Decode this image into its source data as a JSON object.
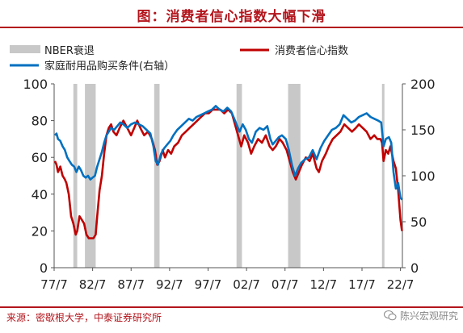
{
  "header": {
    "title": "图：消费者信心指数大幅下滑"
  },
  "footer": {
    "source": "来源：密歇根大学，中泰证券研究所",
    "watermark": "陈兴宏观研究"
  },
  "colors": {
    "accent": "#b3151c",
    "consumer": "#c00000",
    "durable": "#0070c0",
    "nber": "#c8c8c8"
  },
  "chart_data": {
    "type": "line",
    "xlim": [
      1977.5,
      2022.75
    ],
    "ylim": [
      0,
      100
    ],
    "y2lim": [
      0,
      200
    ],
    "x_tick_labels": [
      "77/7",
      "82/7",
      "87/7",
      "92/7",
      "97/7",
      "02/7",
      "07/7",
      "12/7",
      "17/7",
      "22/7"
    ],
    "x_tick_values": [
      1977.5,
      1982.5,
      1987.5,
      1992.5,
      1997.5,
      2002.5,
      2007.5,
      2012.5,
      2017.5,
      2022.5
    ],
    "y_ticks": [
      0,
      20,
      40,
      60,
      80,
      100
    ],
    "y2_ticks": [
      0,
      50,
      100,
      150,
      200
    ],
    "legend": [
      {
        "label": "NBER衰退",
        "kind": "band"
      },
      {
        "label": "消费者信心指数",
        "kind": "line-red"
      },
      {
        "label": "家庭耐用品购买条件(右轴）",
        "kind": "line-blue"
      }
    ],
    "recessions": [
      [
        1980.0,
        1980.5
      ],
      [
        1981.5,
        1982.9
      ],
      [
        1990.5,
        1991.2
      ],
      [
        2001.2,
        2001.9
      ],
      [
        2007.9,
        2009.5
      ],
      [
        2020.1,
        2020.4
      ]
    ],
    "series": [
      {
        "name": "消费者信心指数",
        "axis": "left",
        "points": [
          [
            1977.6,
            58
          ],
          [
            1977.8,
            56
          ],
          [
            1978.0,
            52
          ],
          [
            1978.3,
            55
          ],
          [
            1978.6,
            50
          ],
          [
            1978.9,
            48
          ],
          [
            1979.1,
            46
          ],
          [
            1979.4,
            40
          ],
          [
            1979.7,
            28
          ],
          [
            1980.0,
            24
          ],
          [
            1980.3,
            18
          ],
          [
            1980.5,
            20
          ],
          [
            1980.8,
            28
          ],
          [
            1981.1,
            26
          ],
          [
            1981.4,
            24
          ],
          [
            1981.7,
            18
          ],
          [
            1982.0,
            16
          ],
          [
            1982.3,
            16
          ],
          [
            1982.6,
            16
          ],
          [
            1982.9,
            18
          ],
          [
            1983.1,
            28
          ],
          [
            1983.4,
            42
          ],
          [
            1983.7,
            50
          ],
          [
            1984.0,
            62
          ],
          [
            1984.3,
            72
          ],
          [
            1984.6,
            76
          ],
          [
            1984.9,
            78
          ],
          [
            1985.2,
            74
          ],
          [
            1985.6,
            72
          ],
          [
            1986.0,
            76
          ],
          [
            1986.5,
            80
          ],
          [
            1987.0,
            76
          ],
          [
            1987.5,
            72
          ],
          [
            1987.9,
            76
          ],
          [
            1988.3,
            80
          ],
          [
            1988.7,
            76
          ],
          [
            1989.2,
            72
          ],
          [
            1989.7,
            74
          ],
          [
            1990.2,
            70
          ],
          [
            1990.6,
            64
          ],
          [
            1990.9,
            56
          ],
          [
            1991.2,
            58
          ],
          [
            1991.6,
            64
          ],
          [
            1991.9,
            60
          ],
          [
            1992.3,
            64
          ],
          [
            1992.7,
            62
          ],
          [
            1993.1,
            66
          ],
          [
            1993.6,
            68
          ],
          [
            1994.1,
            72
          ],
          [
            1994.6,
            74
          ],
          [
            1995.1,
            76
          ],
          [
            1995.6,
            78
          ],
          [
            1996.1,
            80
          ],
          [
            1996.6,
            82
          ],
          [
            1997.1,
            84
          ],
          [
            1997.6,
            84
          ],
          [
            1998.1,
            86
          ],
          [
            1998.6,
            86
          ],
          [
            1999.1,
            86
          ],
          [
            1999.6,
            84
          ],
          [
            2000.1,
            86
          ],
          [
            2000.6,
            84
          ],
          [
            2001.0,
            78
          ],
          [
            2001.4,
            72
          ],
          [
            2001.8,
            66
          ],
          [
            2002.2,
            72
          ],
          [
            2002.7,
            68
          ],
          [
            2003.1,
            62
          ],
          [
            2003.5,
            66
          ],
          [
            2004.0,
            70
          ],
          [
            2004.5,
            68
          ],
          [
            2005.0,
            72
          ],
          [
            2005.5,
            66
          ],
          [
            2005.9,
            64
          ],
          [
            2006.3,
            66
          ],
          [
            2006.8,
            70
          ],
          [
            2007.2,
            68
          ],
          [
            2007.7,
            64
          ],
          [
            2008.1,
            58
          ],
          [
            2008.5,
            52
          ],
          [
            2008.9,
            48
          ],
          [
            2009.3,
            52
          ],
          [
            2009.7,
            56
          ],
          [
            2010.2,
            60
          ],
          [
            2010.7,
            58
          ],
          [
            2011.1,
            62
          ],
          [
            2011.6,
            54
          ],
          [
            2011.9,
            52
          ],
          [
            2012.3,
            58
          ],
          [
            2012.8,
            62
          ],
          [
            2013.2,
            66
          ],
          [
            2013.7,
            70
          ],
          [
            2014.2,
            72
          ],
          [
            2014.7,
            74
          ],
          [
            2015.2,
            78
          ],
          [
            2015.7,
            76
          ],
          [
            2016.2,
            74
          ],
          [
            2016.7,
            76
          ],
          [
            2017.1,
            78
          ],
          [
            2017.6,
            76
          ],
          [
            2018.1,
            74
          ],
          [
            2018.6,
            70
          ],
          [
            2019.1,
            72
          ],
          [
            2019.5,
            70
          ],
          [
            2019.9,
            70
          ],
          [
            2020.1,
            68
          ],
          [
            2020.3,
            58
          ],
          [
            2020.6,
            64
          ],
          [
            2020.9,
            62
          ],
          [
            2021.2,
            66
          ],
          [
            2021.6,
            58
          ],
          [
            2021.9,
            54
          ],
          [
            2022.2,
            42
          ],
          [
            2022.5,
            26
          ],
          [
            2022.7,
            20
          ]
        ]
      },
      {
        "name": "家庭耐用品购买条件(右轴）",
        "axis": "right",
        "points": [
          [
            1977.6,
            144
          ],
          [
            1977.8,
            146
          ],
          [
            1978.0,
            140
          ],
          [
            1978.3,
            138
          ],
          [
            1978.6,
            132
          ],
          [
            1978.9,
            128
          ],
          [
            1979.2,
            120
          ],
          [
            1979.5,
            116
          ],
          [
            1979.8,
            112
          ],
          [
            1980.1,
            110
          ],
          [
            1980.4,
            104
          ],
          [
            1980.7,
            110
          ],
          [
            1981.0,
            106
          ],
          [
            1981.3,
            100
          ],
          [
            1981.6,
            98
          ],
          [
            1981.9,
            100
          ],
          [
            1982.2,
            96
          ],
          [
            1982.5,
            98
          ],
          [
            1982.8,
            100
          ],
          [
            1983.1,
            110
          ],
          [
            1983.4,
            118
          ],
          [
            1983.7,
            126
          ],
          [
            1984.0,
            136
          ],
          [
            1984.3,
            144
          ],
          [
            1984.6,
            148
          ],
          [
            1984.9,
            152
          ],
          [
            1985.3,
            150
          ],
          [
            1985.7,
            154
          ],
          [
            1986.1,
            158
          ],
          [
            1986.5,
            156
          ],
          [
            1987.0,
            152
          ],
          [
            1987.5,
            156
          ],
          [
            1988.0,
            158
          ],
          [
            1988.5,
            156
          ],
          [
            1989.0,
            154
          ],
          [
            1989.5,
            150
          ],
          [
            1990.0,
            146
          ],
          [
            1990.4,
            132
          ],
          [
            1990.7,
            116
          ],
          [
            1991.0,
            112
          ],
          [
            1991.4,
            124
          ],
          [
            1991.8,
            130
          ],
          [
            1992.2,
            134
          ],
          [
            1992.6,
            138
          ],
          [
            1993.0,
            144
          ],
          [
            1993.5,
            150
          ],
          [
            1994.0,
            154
          ],
          [
            1994.5,
            158
          ],
          [
            1995.0,
            162
          ],
          [
            1995.5,
            160
          ],
          [
            1996.0,
            164
          ],
          [
            1996.5,
            166
          ],
          [
            1997.0,
            168
          ],
          [
            1997.5,
            170
          ],
          [
            1998.0,
            172
          ],
          [
            1998.5,
            176
          ],
          [
            1999.0,
            172
          ],
          [
            1999.5,
            170
          ],
          [
            2000.0,
            174
          ],
          [
            2000.5,
            170
          ],
          [
            2000.9,
            162
          ],
          [
            2001.2,
            156
          ],
          [
            2001.6,
            148
          ],
          [
            2002.0,
            156
          ],
          [
            2002.4,
            150
          ],
          [
            2002.8,
            140
          ],
          [
            2003.2,
            136
          ],
          [
            2003.7,
            148
          ],
          [
            2004.2,
            152
          ],
          [
            2004.7,
            150
          ],
          [
            2005.2,
            154
          ],
          [
            2005.6,
            140
          ],
          [
            2005.9,
            134
          ],
          [
            2006.3,
            138
          ],
          [
            2006.7,
            142
          ],
          [
            2007.1,
            144
          ],
          [
            2007.6,
            140
          ],
          [
            2008.0,
            128
          ],
          [
            2008.4,
            112
          ],
          [
            2008.8,
            100
          ],
          [
            2009.2,
            108
          ],
          [
            2009.6,
            114
          ],
          [
            2010.1,
            118
          ],
          [
            2010.6,
            120
          ],
          [
            2011.1,
            128
          ],
          [
            2011.6,
            118
          ],
          [
            2012.1,
            130
          ],
          [
            2012.6,
            138
          ],
          [
            2013.1,
            144
          ],
          [
            2013.6,
            150
          ],
          [
            2014.1,
            152
          ],
          [
            2014.6,
            156
          ],
          [
            2015.1,
            166
          ],
          [
            2015.6,
            162
          ],
          [
            2016.1,
            158
          ],
          [
            2016.6,
            160
          ],
          [
            2017.1,
            164
          ],
          [
            2017.6,
            166
          ],
          [
            2018.1,
            168
          ],
          [
            2018.6,
            164
          ],
          [
            2019.1,
            162
          ],
          [
            2019.6,
            160
          ],
          [
            2020.0,
            158
          ],
          [
            2020.3,
            132
          ],
          [
            2020.6,
            140
          ],
          [
            2021.0,
            142
          ],
          [
            2021.3,
            136
          ],
          [
            2021.6,
            104
          ],
          [
            2021.9,
            86
          ],
          [
            2022.2,
            92
          ],
          [
            2022.5,
            76
          ],
          [
            2022.7,
            74
          ]
        ]
      }
    ]
  }
}
